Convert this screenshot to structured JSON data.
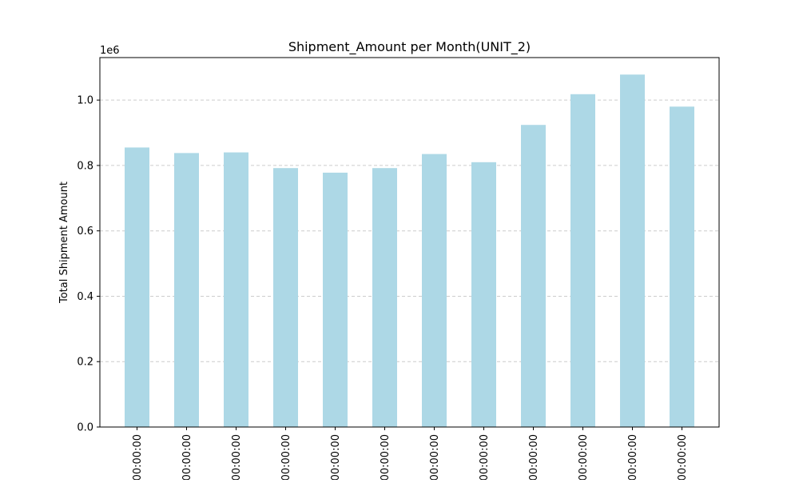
{
  "chart_data": {
    "type": "bar",
    "title": "Shipment_Amount per Month(UNIT_2)",
    "xlabel": "",
    "ylabel": "Total Shipment Amount",
    "y_offset_label": "1e6",
    "ylim": [
      0,
      1.13
    ],
    "yticks": [
      0.0,
      0.2,
      0.4,
      0.6,
      0.8,
      1.0
    ],
    "ytick_labels": [
      "0.0",
      "0.2",
      "0.4",
      "0.6",
      "0.8",
      "1.0"
    ],
    "grid": "y-dashed",
    "legend": "none",
    "colors": {
      "bar": "#add8e6",
      "grid": "#cccccc",
      "axis": "#000000"
    },
    "categories": [
      "00:00:00",
      "00:00:00",
      "00:00:00",
      "00:00:00",
      "00:00:00",
      "00:00:00",
      "00:00:00",
      "00:00:00",
      "00:00:00",
      "00:00:00",
      "00:00:00",
      "00:00:00"
    ],
    "values": [
      0.855,
      0.838,
      0.84,
      0.792,
      0.778,
      0.792,
      0.835,
      0.81,
      0.924,
      1.018,
      1.078,
      0.98
    ]
  }
}
